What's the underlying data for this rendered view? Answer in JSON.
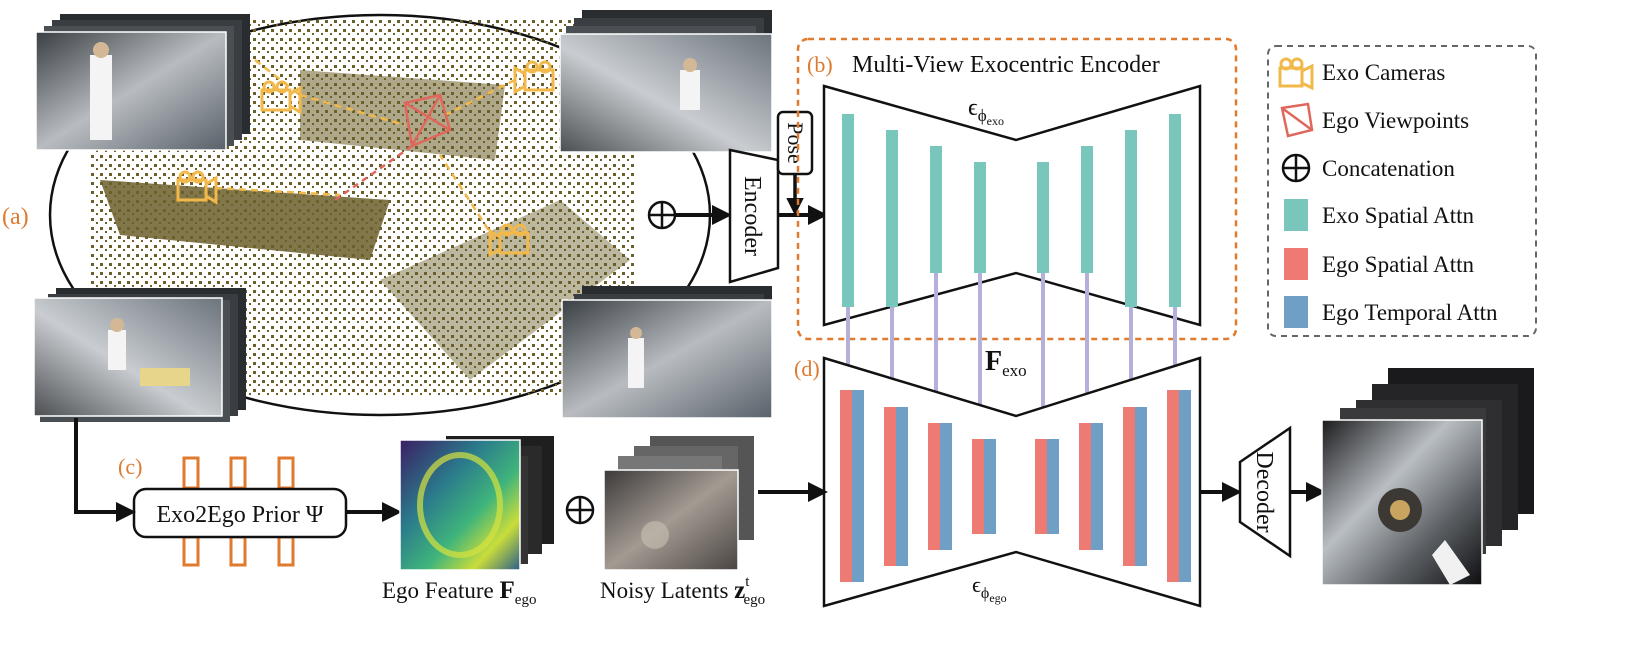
{
  "panels": {
    "a": "(a)",
    "b": "(b)",
    "c": "(c)",
    "d": "(d)"
  },
  "encoder": {
    "title": "Multi-View Exocentric Encoder",
    "block_label": "Encoder",
    "pose_label": "Pose",
    "epsilon_exo_main": "ϵ",
    "epsilon_exo_phi": "ϕ",
    "epsilon_exo_sub": "exo"
  },
  "decoder": {
    "block_label": "Decoder",
    "epsilon_ego_main": "ϵ",
    "epsilon_ego_phi": "ϕ",
    "epsilon_ego_sub": "ego"
  },
  "features": {
    "f_exo_main": "F",
    "f_exo_sub": "exo",
    "ego_feature_text": "Ego Feature ",
    "ego_feature_main": "F",
    "ego_feature_sub": "ego",
    "noisy_text": "Noisy Latents ",
    "noisy_main": "z",
    "noisy_sup": "t",
    "noisy_sub": "ego"
  },
  "prior": {
    "label": "Exo2Ego Prior Ψ"
  },
  "legend": {
    "items": [
      {
        "label": "Exo Cameras",
        "icon": "camera-icon"
      },
      {
        "label": "Ego Viewpoints",
        "icon": "frustum-icon"
      },
      {
        "label": "Concatenation",
        "icon": "oplus-icon"
      },
      {
        "label": "Exo Spatial Attn",
        "color": "#79c6bd"
      },
      {
        "label": "Ego Spatial Attn",
        "color": "#ee7b73"
      },
      {
        "label": "Ego Temporal Attn",
        "color": "#6f9fc4"
      }
    ]
  },
  "colors": {
    "accent": "#e07a2e",
    "exo_spatial": "#79c6bd",
    "ego_spatial": "#ee7b73",
    "ego_temporal": "#6f9fc4",
    "skip_arrow": "#b4b0dc",
    "camera": "#f2b94a",
    "ego_view": "#e0675c",
    "pointcloud": "#6b5f2a"
  }
}
